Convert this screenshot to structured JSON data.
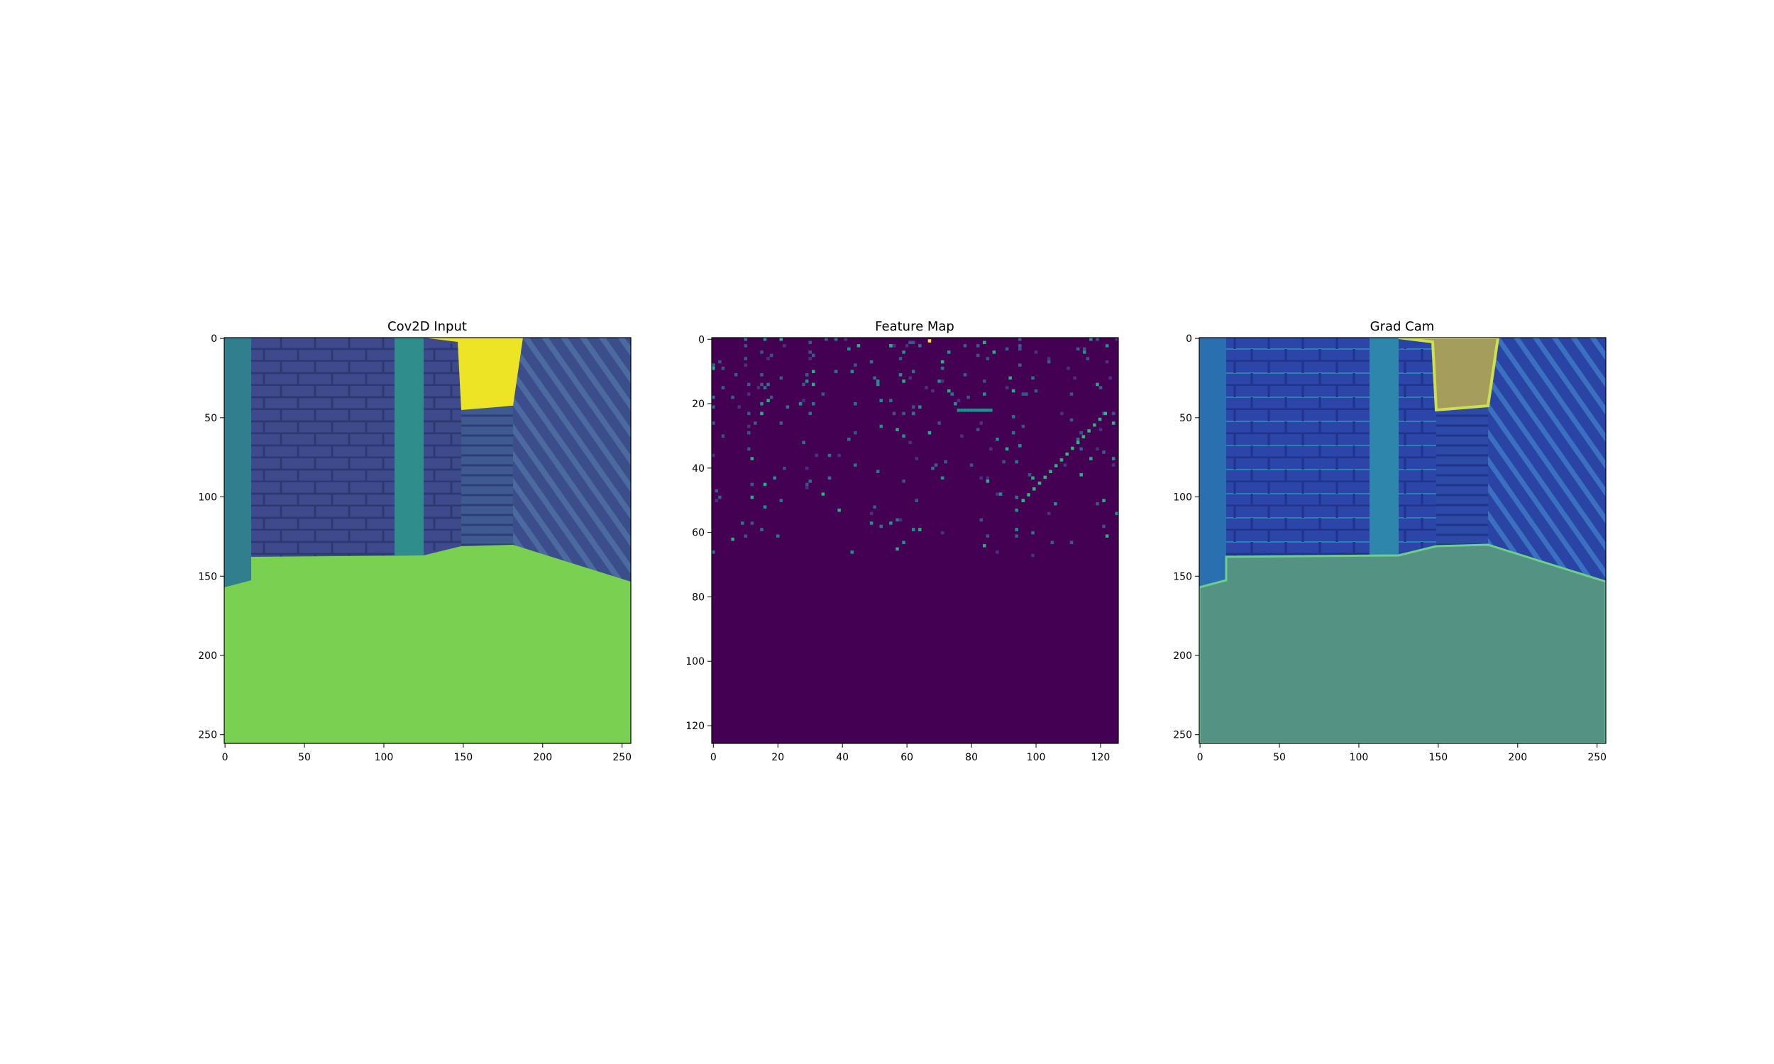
{
  "chart_data": [
    {
      "type": "heatmap",
      "title": "Cov2D Input",
      "xlabel": "",
      "ylabel": "",
      "xlim": [
        0,
        255
      ],
      "ylim": [
        255,
        0
      ],
      "x_ticks": [
        0,
        50,
        100,
        150,
        200,
        250
      ],
      "y_ticks": [
        0,
        50,
        100,
        150,
        200,
        250
      ],
      "colormap": "viridis",
      "content": "maze corridor: brick walls left and center, striped wall right, bright yellow sky gap at top center, green floor below row ~150"
    },
    {
      "type": "heatmap",
      "title": "Feature Map",
      "xlabel": "",
      "ylabel": "",
      "xlim": [
        0,
        125
      ],
      "ylim": [
        125,
        0
      ],
      "x_ticks": [
        0,
        20,
        40,
        60,
        80,
        100,
        120
      ],
      "y_ticks": [
        0,
        20,
        40,
        60,
        80,
        100,
        120
      ],
      "colormap": "viridis",
      "content": "mostly dark purple with sparse activations above row ~70; brightest yellow pixel near (67, 1)"
    },
    {
      "type": "heatmap",
      "title": "Grad Cam",
      "xlabel": "",
      "ylabel": "",
      "xlim": [
        0,
        255
      ],
      "ylim": [
        255,
        0
      ],
      "x_ticks": [
        0,
        50,
        100,
        150,
        200,
        250
      ],
      "y_ticks": [
        0,
        50,
        100,
        150,
        200,
        250
      ],
      "colormap": "viridis overlay",
      "content": "corridor with blue-tinted walls, olive sky gap, teal floor"
    }
  ],
  "colors": {
    "wall_dark": "#3e4a8c",
    "wall_mid": "#3b5f96",
    "wall_light": "#2f8d8c",
    "sky": "#ece424",
    "floor": "#7ad151",
    "fm_bg": "#440154",
    "gc_wall": "#2843a8",
    "gc_sky": "#a49d5c",
    "gc_floor": "#549384"
  }
}
